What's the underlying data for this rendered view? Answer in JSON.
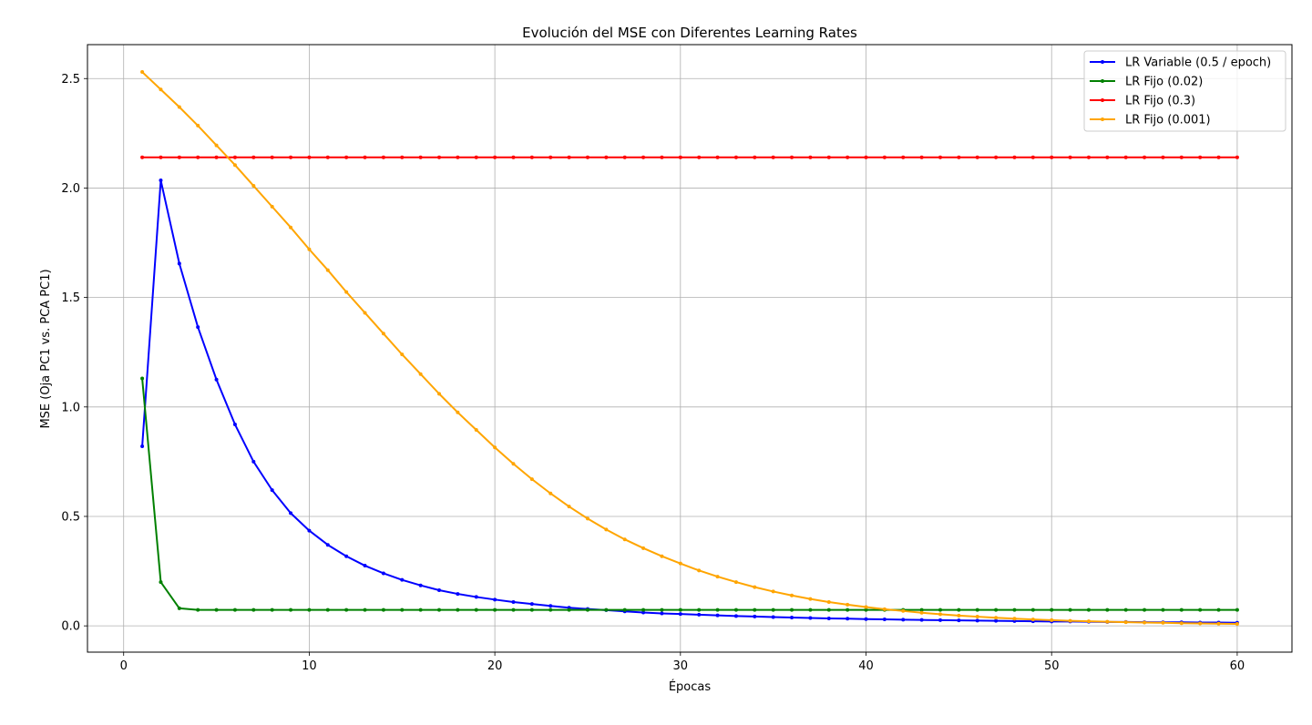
{
  "chart_data": {
    "type": "line",
    "title": "Evolución del MSE con Diferentes Learning Rates",
    "xlabel": "Épocas",
    "ylabel": "MSE (Oja PC1 vs. PCA PC1)",
    "xlim": [
      -1.95,
      62.95
    ],
    "ylim": [
      -0.12,
      2.655
    ],
    "xticks": [
      0,
      10,
      20,
      30,
      40,
      50,
      60
    ],
    "yticks": [
      0.0,
      0.5,
      1.0,
      1.5,
      2.0,
      2.5
    ],
    "xtick_labels": [
      "0",
      "10",
      "20",
      "30",
      "40",
      "50",
      "60"
    ],
    "ytick_labels": [
      "0.0",
      "0.5",
      "1.0",
      "1.5",
      "2.0",
      "2.5"
    ],
    "grid": true,
    "legend_position": "top-right",
    "x": [
      1,
      2,
      3,
      4,
      5,
      6,
      7,
      8,
      9,
      10,
      11,
      12,
      13,
      14,
      15,
      16,
      17,
      18,
      19,
      20,
      21,
      22,
      23,
      24,
      25,
      26,
      27,
      28,
      29,
      30,
      31,
      32,
      33,
      34,
      35,
      36,
      37,
      38,
      39,
      40,
      41,
      42,
      43,
      44,
      45,
      46,
      47,
      48,
      49,
      50,
      51,
      52,
      53,
      54,
      55,
      56,
      57,
      58,
      59,
      60
    ],
    "series": [
      {
        "name": "LR Variable (0.5 / epoch)",
        "color": "#0000ff",
        "values": [
          0.82,
          2.035,
          1.655,
          1.365,
          1.125,
          0.92,
          0.75,
          0.62,
          0.515,
          0.435,
          0.37,
          0.318,
          0.275,
          0.24,
          0.21,
          0.185,
          0.163,
          0.146,
          0.132,
          0.12,
          0.109,
          0.1,
          0.091,
          0.083,
          0.077,
          0.072,
          0.066,
          0.061,
          0.057,
          0.054,
          0.051,
          0.048,
          0.045,
          0.043,
          0.04,
          0.038,
          0.036,
          0.034,
          0.033,
          0.031,
          0.03,
          0.028,
          0.027,
          0.026,
          0.025,
          0.024,
          0.023,
          0.022,
          0.021,
          0.02,
          0.02,
          0.019,
          0.018,
          0.018,
          0.017,
          0.016,
          0.016,
          0.015,
          0.015,
          0.014
        ]
      },
      {
        "name": "LR Fijo (0.02)",
        "color": "#008000",
        "values": [
          1.13,
          0.2,
          0.08,
          0.073,
          0.073,
          0.073,
          0.073,
          0.073,
          0.073,
          0.073,
          0.073,
          0.073,
          0.073,
          0.073,
          0.073,
          0.073,
          0.073,
          0.073,
          0.073,
          0.073,
          0.073,
          0.073,
          0.073,
          0.073,
          0.073,
          0.073,
          0.073,
          0.073,
          0.073,
          0.073,
          0.073,
          0.073,
          0.073,
          0.073,
          0.073,
          0.073,
          0.073,
          0.073,
          0.073,
          0.073,
          0.073,
          0.073,
          0.073,
          0.073,
          0.073,
          0.073,
          0.073,
          0.073,
          0.073,
          0.073,
          0.073,
          0.073,
          0.073,
          0.073,
          0.073,
          0.073,
          0.073,
          0.073,
          0.073,
          0.073
        ]
      },
      {
        "name": "LR Fijo (0.3)",
        "color": "#ff0000",
        "values": [
          2.14,
          2.14,
          2.14,
          2.14,
          2.14,
          2.14,
          2.14,
          2.14,
          2.14,
          2.14,
          2.14,
          2.14,
          2.14,
          2.14,
          2.14,
          2.14,
          2.14,
          2.14,
          2.14,
          2.14,
          2.14,
          2.14,
          2.14,
          2.14,
          2.14,
          2.14,
          2.14,
          2.14,
          2.14,
          2.14,
          2.14,
          2.14,
          2.14,
          2.14,
          2.14,
          2.14,
          2.14,
          2.14,
          2.14,
          2.14,
          2.14,
          2.14,
          2.14,
          2.14,
          2.14,
          2.14,
          2.14,
          2.14,
          2.14,
          2.14,
          2.14,
          2.14,
          2.14,
          2.14,
          2.14,
          2.14,
          2.14,
          2.14,
          2.14,
          2.14
        ]
      },
      {
        "name": "LR Fijo (0.001)",
        "color": "#ffa500",
        "values": [
          2.53,
          2.45,
          2.37,
          2.285,
          2.195,
          2.105,
          2.01,
          1.915,
          1.82,
          1.72,
          1.625,
          1.525,
          1.43,
          1.335,
          1.24,
          1.15,
          1.06,
          0.975,
          0.895,
          0.815,
          0.74,
          0.67,
          0.605,
          0.545,
          0.49,
          0.44,
          0.395,
          0.355,
          0.318,
          0.285,
          0.253,
          0.225,
          0.2,
          0.177,
          0.157,
          0.139,
          0.123,
          0.109,
          0.097,
          0.086,
          0.076,
          0.068,
          0.06,
          0.053,
          0.047,
          0.042,
          0.037,
          0.033,
          0.029,
          0.026,
          0.023,
          0.021,
          0.019,
          0.017,
          0.015,
          0.014,
          0.012,
          0.011,
          0.01,
          0.009
        ]
      }
    ]
  }
}
